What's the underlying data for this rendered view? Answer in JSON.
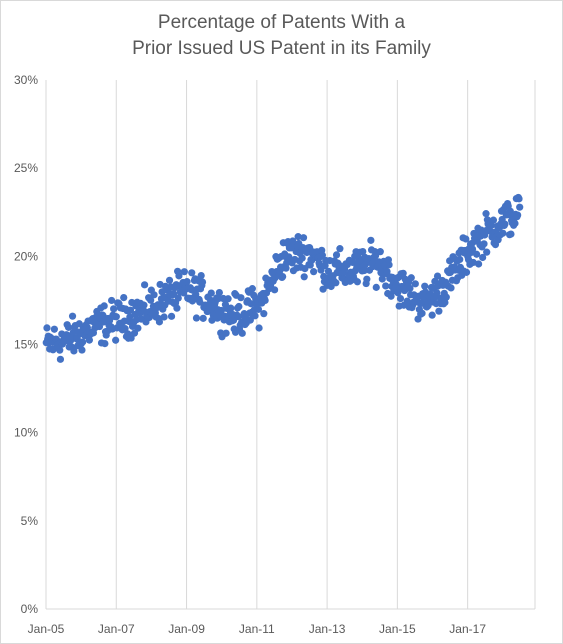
{
  "chart_data": {
    "type": "scatter",
    "title_lines": [
      "Percentage of Patents With a",
      "Prior Issued US Patent in its Family"
    ],
    "xlabel": "",
    "ylabel": "",
    "x_ticks": [
      "Jan-05",
      "Jan-07",
      "Jan-09",
      "Jan-11",
      "Jan-13",
      "Jan-15",
      "Jan-17"
    ],
    "y_ticks": [
      "0%",
      "5%",
      "10%",
      "15%",
      "20%",
      "25%",
      "30%"
    ],
    "ylim": [
      0,
      30
    ],
    "xlim": [
      "2005-01",
      "2018-12"
    ],
    "grid": "vertical",
    "legend": "none",
    "marker_color": "#4472C4",
    "sample_every_weeks": 1,
    "x_start": "2005-01-04",
    "x_end": "2018-06-26",
    "trend_y": [
      15.0,
      15.3,
      16.0,
      16.4,
      16.8,
      17.5,
      18.1,
      17.3,
      16.6,
      17.2,
      19.9,
      20.3,
      19.1,
      19.2,
      19.7,
      18.2,
      17.3,
      18.6,
      20.6,
      21.7,
      22.5
    ],
    "noise_amplitude": 1.1
  }
}
